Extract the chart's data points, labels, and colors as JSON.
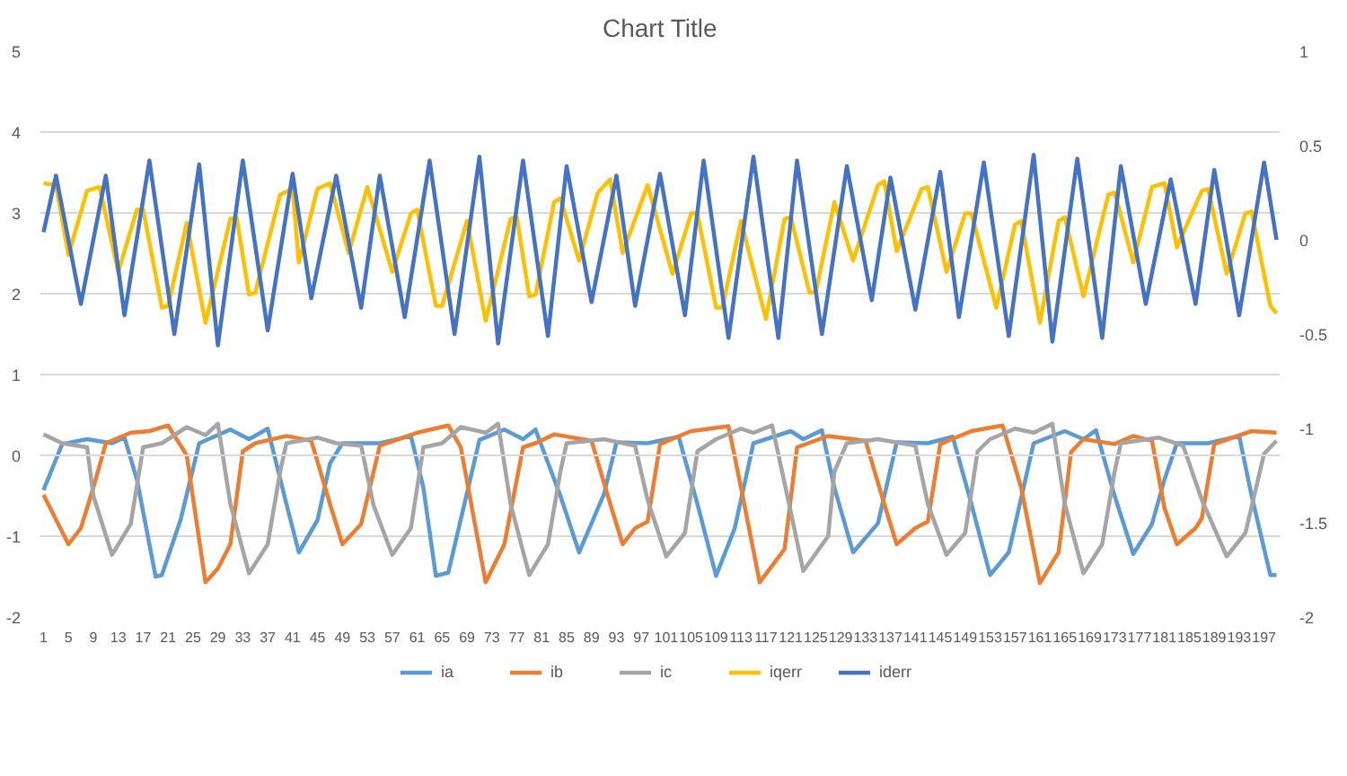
{
  "chart_data": {
    "type": "line",
    "title": "Chart Title",
    "xlim": [
      0.5,
      199.5
    ],
    "xticks": [
      1,
      5,
      9,
      13,
      17,
      21,
      25,
      29,
      33,
      37,
      41,
      45,
      49,
      53,
      57,
      61,
      65,
      69,
      73,
      77,
      81,
      85,
      89,
      93,
      97,
      101,
      105,
      109,
      113,
      117,
      121,
      125,
      129,
      133,
      137,
      141,
      145,
      149,
      153,
      157,
      161,
      165,
      169,
      173,
      177,
      181,
      185,
      189,
      193,
      197
    ],
    "ylim": [
      -2,
      5
    ],
    "yticks": [
      -2,
      -1,
      0,
      1,
      2,
      3,
      4,
      5
    ],
    "y2lim": [
      -2,
      1
    ],
    "y2ticks": [
      -2,
      -1.5,
      -1,
      -0.5,
      0,
      0.5,
      1
    ],
    "grid": "y",
    "legend": "bottom",
    "series": [
      {
        "name": "ia",
        "color": "#5b9bd5",
        "x": [
          1,
          4,
          8,
          12,
          14,
          16,
          19,
          20,
          23,
          26,
          31,
          34,
          37,
          40,
          42,
          45,
          47,
          49,
          55,
          60,
          62,
          64,
          66,
          71,
          75,
          78,
          80,
          84,
          87,
          89,
          91,
          93,
          98,
          103,
          106,
          109,
          112,
          115,
          121,
          123,
          126,
          128,
          131,
          135,
          138,
          143,
          147,
          150,
          153,
          156,
          160,
          165,
          168,
          170,
          173,
          176,
          179,
          181,
          183,
          188,
          193,
          195,
          198,
          199
        ],
        "values": [
          -0.43,
          0.14,
          0.2,
          0.15,
          0.22,
          -0.3,
          -1.5,
          -1.48,
          -0.8,
          0.15,
          0.32,
          0.2,
          0.33,
          -0.6,
          -1.2,
          -0.8,
          -0.1,
          0.15,
          0.15,
          0.24,
          -0.4,
          -1.49,
          -1.45,
          0.19,
          0.32,
          0.2,
          0.32,
          -0.5,
          -1.2,
          -0.84,
          -0.48,
          0.16,
          0.15,
          0.23,
          -0.6,
          -1.49,
          -0.9,
          0.15,
          0.3,
          0.2,
          0.31,
          -0.4,
          -1.2,
          -0.84,
          0.16,
          0.15,
          0.23,
          -0.6,
          -1.48,
          -1.2,
          0.15,
          0.3,
          0.2,
          0.31,
          -0.5,
          -1.22,
          -0.85,
          -0.3,
          0.15,
          0.15,
          0.24,
          -0.5,
          -1.48,
          -1.48
        ]
      },
      {
        "name": "ib",
        "color": "#ed7d31",
        "x": [
          1,
          5,
          7,
          9,
          11,
          15,
          18,
          21,
          24,
          27,
          29,
          31,
          33,
          35,
          40,
          44,
          47,
          49,
          52,
          55,
          61,
          66,
          68,
          72,
          75,
          78,
          80,
          83,
          89,
          92,
          94,
          96,
          98,
          100,
          105,
          111,
          113,
          116,
          120,
          122,
          127,
          133,
          136,
          138,
          141,
          143,
          145,
          150,
          155,
          158,
          161,
          164,
          166,
          168,
          173,
          176,
          179,
          181,
          183,
          186,
          187,
          189,
          195,
          199
        ],
        "values": [
          -0.49,
          -1.1,
          -0.9,
          -0.4,
          0.15,
          0.28,
          0.3,
          0.37,
          0.0,
          -1.57,
          -1.4,
          -1.1,
          0.05,
          0.15,
          0.24,
          0.18,
          -0.6,
          -1.1,
          -0.85,
          0.12,
          0.28,
          0.37,
          0.1,
          -1.57,
          -1.1,
          0.1,
          0.15,
          0.26,
          0.18,
          -0.6,
          -1.1,
          -0.9,
          -0.82,
          0.14,
          0.3,
          0.36,
          -0.4,
          -1.57,
          -1.16,
          0.1,
          0.24,
          0.18,
          -0.6,
          -1.1,
          -0.9,
          -0.82,
          0.14,
          0.3,
          0.37,
          -0.4,
          -1.58,
          -1.2,
          0.04,
          0.2,
          0.14,
          0.24,
          0.18,
          -0.65,
          -1.1,
          -0.9,
          -0.78,
          0.14,
          0.3,
          0.28
        ]
      },
      {
        "name": "ic",
        "color": "#a5a5a5",
        "x": [
          1,
          4,
          8,
          9,
          12,
          15,
          17,
          20,
          24,
          27,
          29,
          31,
          34,
          37,
          39,
          40,
          45,
          48,
          52,
          54,
          57,
          60,
          62,
          65,
          68,
          72,
          74,
          76,
          79,
          82,
          84,
          85,
          91,
          96,
          98,
          101,
          104,
          106,
          109,
          113,
          115,
          118,
          121,
          123,
          127,
          128,
          130,
          135,
          141,
          143,
          146,
          149,
          151,
          153,
          157,
          160,
          163,
          165,
          168,
          171,
          173,
          174,
          180,
          184,
          187,
          191,
          194,
          197,
          199
        ],
        "values": [
          0.26,
          0.15,
          0.1,
          -0.5,
          -1.23,
          -0.85,
          0.1,
          0.15,
          0.35,
          0.25,
          0.39,
          -0.6,
          -1.46,
          -1.1,
          -0.2,
          0.15,
          0.22,
          0.15,
          0.12,
          -0.62,
          -1.23,
          -0.9,
          0.1,
          0.15,
          0.35,
          0.28,
          0.39,
          -0.6,
          -1.48,
          -1.1,
          -0.2,
          0.15,
          0.2,
          0.12,
          -0.55,
          -1.25,
          -0.96,
          0.05,
          0.2,
          0.33,
          0.28,
          0.37,
          -0.7,
          -1.43,
          -1.0,
          -0.2,
          0.15,
          0.2,
          0.12,
          -0.6,
          -1.23,
          -0.96,
          0.05,
          0.2,
          0.33,
          0.28,
          0.39,
          -0.6,
          -1.46,
          -1.1,
          -0.2,
          0.15,
          0.22,
          0.12,
          -0.55,
          -1.25,
          -0.96,
          0.02,
          0.18
        ]
      },
      {
        "name": "iqerr",
        "color": "#ffc000",
        "axis": "y2",
        "x": [
          1,
          3,
          5,
          8,
          10,
          13,
          16,
          17,
          20,
          21,
          24,
          27,
          31,
          32,
          34,
          35,
          39,
          41,
          42,
          45,
          47,
          50,
          53,
          57,
          60,
          61,
          64,
          65,
          69,
          72,
          76,
          77,
          79,
          80,
          83,
          84,
          87,
          90,
          92,
          94,
          98,
          102,
          105,
          106,
          109,
          110,
          113,
          117,
          120,
          121,
          124,
          125,
          128,
          131,
          135,
          136,
          138,
          142,
          143,
          146,
          149,
          150,
          154,
          157,
          158,
          161,
          164,
          165,
          168,
          172,
          173,
          176,
          179,
          181,
          183,
          187,
          188,
          191,
          194,
          195,
          198,
          199
        ],
        "values": [
          0.3,
          0.29,
          -0.08,
          0.26,
          0.28,
          -0.17,
          0.16,
          0.16,
          -0.36,
          -0.35,
          0.09,
          -0.44,
          0.11,
          0.12,
          -0.29,
          -0.28,
          0.24,
          0.27,
          -0.12,
          0.27,
          0.3,
          -0.07,
          0.28,
          -0.17,
          0.14,
          0.16,
          -0.35,
          -0.35,
          0.1,
          -0.43,
          0.11,
          0.12,
          -0.3,
          -0.29,
          0.2,
          0.22,
          -0.11,
          0.25,
          0.32,
          -0.07,
          0.29,
          -0.18,
          0.14,
          0.14,
          -0.36,
          -0.36,
          0.1,
          -0.42,
          0.11,
          0.12,
          -0.28,
          -0.28,
          0.2,
          -0.11,
          0.29,
          0.31,
          -0.06,
          0.27,
          0.28,
          -0.17,
          0.14,
          0.14,
          -0.36,
          0.08,
          0.1,
          -0.44,
          0.1,
          0.12,
          -0.3,
          0.24,
          0.25,
          -0.12,
          0.28,
          0.3,
          -0.04,
          0.26,
          0.27,
          -0.18,
          0.14,
          0.15,
          -0.35,
          -0.39
        ]
      },
      {
        "name": "iderr",
        "color": "#4472c4",
        "axis": "y2",
        "x": [
          1,
          3,
          7,
          11,
          14,
          18,
          22,
          26,
          29,
          33,
          37,
          41,
          44,
          48,
          52,
          55,
          59,
          63,
          67,
          71,
          74,
          78,
          82,
          85,
          89,
          93,
          96,
          100,
          104,
          107,
          111,
          115,
          119,
          122,
          126,
          130,
          134,
          137,
          141,
          145,
          148,
          152,
          156,
          160,
          163,
          167,
          171,
          174,
          178,
          182,
          186,
          189,
          193,
          197,
          199
        ],
        "values": [
          0.04,
          0.34,
          -0.34,
          0.34,
          -0.4,
          0.42,
          -0.5,
          0.4,
          -0.56,
          0.42,
          -0.48,
          0.35,
          -0.31,
          0.34,
          -0.36,
          0.34,
          -0.41,
          0.42,
          -0.5,
          0.44,
          -0.55,
          0.42,
          -0.51,
          0.39,
          -0.33,
          0.34,
          -0.35,
          0.35,
          -0.4,
          0.42,
          -0.52,
          0.44,
          -0.52,
          0.42,
          -0.5,
          0.39,
          -0.32,
          0.33,
          -0.37,
          0.36,
          -0.41,
          0.41,
          -0.51,
          0.45,
          -0.54,
          0.43,
          -0.52,
          0.39,
          -0.34,
          0.32,
          -0.34,
          0.37,
          -0.4,
          0.41,
          0.0
        ]
      }
    ]
  }
}
